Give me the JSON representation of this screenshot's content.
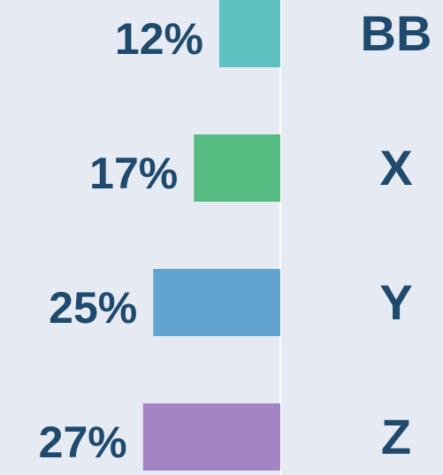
{
  "chart_data": {
    "type": "bar",
    "orientation": "horizontal",
    "categories": [
      "BB",
      "X",
      "Y",
      "Z"
    ],
    "values": [
      12,
      17,
      25,
      27
    ],
    "value_labels": [
      "12%",
      "17%",
      "25%",
      "27%"
    ],
    "colors": [
      "#5fc1c1",
      "#56bb80",
      "#62a4cf",
      "#a385c6"
    ]
  }
}
